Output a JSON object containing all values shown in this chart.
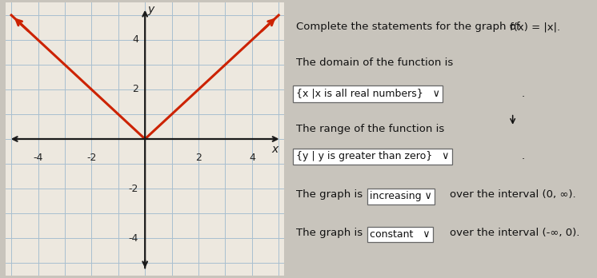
{
  "outer_bg": "#c8c4bc",
  "graph_bg": "#ede8df",
  "grid_color": "#a8bfd0",
  "axis_color": "#1a1a1a",
  "line_color": "#cc2200",
  "line_width": 2.2,
  "xlim": [
    -5.2,
    5.2
  ],
  "ylim": [
    -5.5,
    5.5
  ],
  "xticks": [
    -4,
    -2,
    2,
    4
  ],
  "yticks": [
    -4,
    -2,
    2,
    4
  ],
  "xlabel": "x",
  "ylabel": "y",
  "title_text": "Complete the statements for the graph of",
  "function_label": "f(x) = |x|.",
  "line1_label": "The domain of the function is",
  "dropdown1": "{x |x is all real numbers}",
  "line2_label": "The range of the function is",
  "dropdown2": "{y | y is greater than zero}",
  "line3a": "The graph is",
  "dropdown3": "increasing ∨",
  "line3b": "over the interval (0, ∞).",
  "line4a": "The graph is",
  "dropdown4": "constant   ∨",
  "line4b": "over the interval (-∞, 0).",
  "tick_fontsize": 9,
  "label_fontsize": 10,
  "text_fontsize": 9.5
}
